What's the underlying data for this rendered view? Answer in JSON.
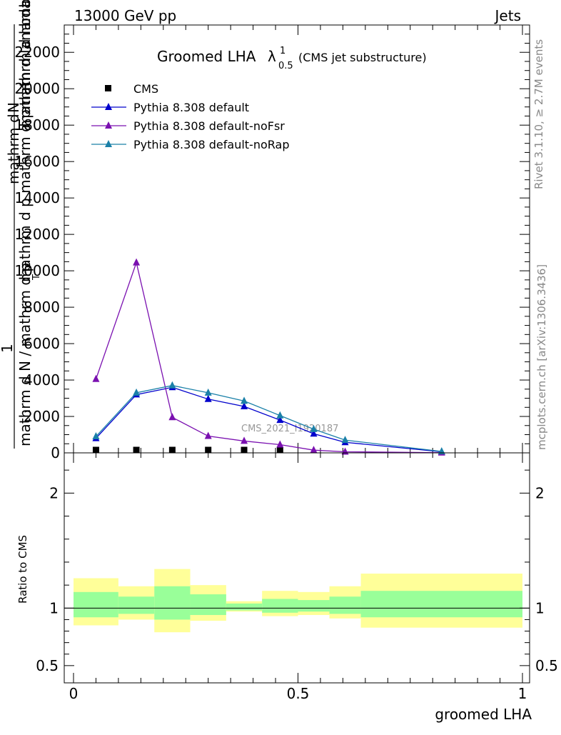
{
  "header": {
    "left_label": "13000 GeV pp",
    "right_label": "Jets"
  },
  "side_labels": {
    "rivet": "Rivet 3.1.10, ≥ 2.7M events",
    "mcplots": "mcplots.cern.ch [arXiv:1306.3436]"
  },
  "watermark": "CMS_2021_I1920187",
  "chart_data": [
    {
      "type": "line",
      "title_main": "Groomed LHA",
      "title_lambda": "λ",
      "title_sup": "1",
      "title_sub": "0.5",
      "title_note": "(CMS jet substructure)",
      "ylabel_top_line1": "mathrm d",
      "ylabel_top_line1b": "N",
      "ylabel_top_line2": "mathrm d p",
      "ylabel_top_line2b": "mathrm d lambda",
      "ylabel_top_fraction_one": "1",
      "ylabel_bottom": "mathrm d N / mathrm d p",
      "ylabel_bottom_b": "T",
      "ylabel_overlay": "mathrm d p mathrm d pmathrm d lambda",
      "ylim": [
        0,
        23500
      ],
      "yticks": [
        0,
        2000,
        4000,
        6000,
        8000,
        10000,
        12000,
        14000,
        16000,
        18000,
        20000,
        22000
      ],
      "ytick_labels": [
        "0",
        "2000",
        "4000",
        "6000",
        "8000",
        "10000",
        "12000",
        "14000",
        "16000",
        "18000",
        "20000",
        "22000"
      ],
      "xlim": [
        0,
        1
      ],
      "legend_position": "top-left",
      "series": [
        {
          "name": "CMS",
          "marker": "square",
          "color": "#000000",
          "x": [
            0.05,
            0.14,
            0.22,
            0.3,
            0.38,
            0.46
          ],
          "y": [
            20,
            30,
            30,
            30,
            25,
            20
          ]
        },
        {
          "name": "Pythia 8.308 default",
          "marker": "triangle",
          "color": "#0000cc",
          "x": [
            0.05,
            0.14,
            0.22,
            0.3,
            0.38,
            0.46,
            0.535,
            0.605,
            0.82
          ],
          "y": [
            800,
            3200,
            3600,
            2950,
            2550,
            1800,
            1050,
            580,
            60
          ]
        },
        {
          "name": "Pythia 8.308 default-noFsr",
          "marker": "triangle",
          "color": "#7a10b0",
          "x": [
            0.05,
            0.14,
            0.22,
            0.3,
            0.38,
            0.46,
            0.535,
            0.605,
            0.82
          ],
          "y": [
            4050,
            10450,
            1950,
            920,
            650,
            450,
            150,
            60,
            10
          ]
        },
        {
          "name": "Pythia 8.308 default-noRap",
          "marker": "triangle",
          "color": "#1a80a8",
          "x": [
            0.05,
            0.14,
            0.22,
            0.3,
            0.38,
            0.46,
            0.535,
            0.605,
            0.82
          ],
          "y": [
            900,
            3300,
            3700,
            3300,
            2850,
            2050,
            1300,
            700,
            80
          ]
        }
      ]
    },
    {
      "type": "area",
      "ylabel": "Ratio to CMS",
      "xlabel": "groomed LHA",
      "ylim": [
        0.35,
        2.35
      ],
      "yticks": [
        0.5,
        1,
        2
      ],
      "ytick_labels": [
        "0.5",
        "1",
        "2"
      ],
      "xlim": [
        0,
        1
      ],
      "xticks": [
        0,
        0.5,
        1
      ],
      "xtick_labels": [
        "0",
        "0.5",
        "1"
      ],
      "colors": {
        "inner_band": "#99ff99",
        "outer_band": "#ffff99"
      },
      "bins": [
        {
          "x0": 0.0,
          "x1": 0.1,
          "outer": [
            0.85,
            1.26
          ],
          "inner": [
            0.92,
            1.14
          ]
        },
        {
          "x0": 0.1,
          "x1": 0.18,
          "outer": [
            0.9,
            1.19
          ],
          "inner": [
            0.95,
            1.1
          ]
        },
        {
          "x0": 0.18,
          "x1": 0.26,
          "outer": [
            0.79,
            1.34
          ],
          "inner": [
            0.9,
            1.19
          ]
        },
        {
          "x0": 0.26,
          "x1": 0.34,
          "outer": [
            0.89,
            1.2
          ],
          "inner": [
            0.94,
            1.12
          ]
        },
        {
          "x0": 0.34,
          "x1": 0.42,
          "outer": [
            0.97,
            1.06
          ],
          "inner": [
            0.98,
            1.04
          ]
        },
        {
          "x0": 0.42,
          "x1": 0.5,
          "outer": [
            0.93,
            1.15
          ],
          "inner": [
            0.96,
            1.08
          ]
        },
        {
          "x0": 0.5,
          "x1": 0.57,
          "outer": [
            0.94,
            1.14
          ],
          "inner": [
            0.97,
            1.07
          ]
        },
        {
          "x0": 0.57,
          "x1": 0.64,
          "outer": [
            0.91,
            1.19
          ],
          "inner": [
            0.95,
            1.1
          ]
        },
        {
          "x0": 0.64,
          "x1": 1.0,
          "outer": [
            0.83,
            1.3
          ],
          "inner": [
            0.92,
            1.15
          ]
        }
      ],
      "reference_line": 1
    }
  ]
}
